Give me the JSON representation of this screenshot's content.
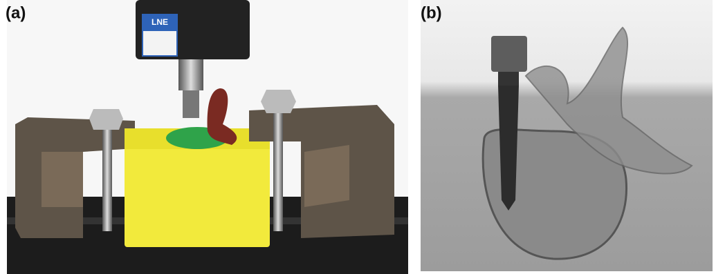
{
  "panels": [
    {
      "label": "(a)",
      "sensor_label": "LNE"
    },
    {
      "label": "(b)"
    }
  ]
}
